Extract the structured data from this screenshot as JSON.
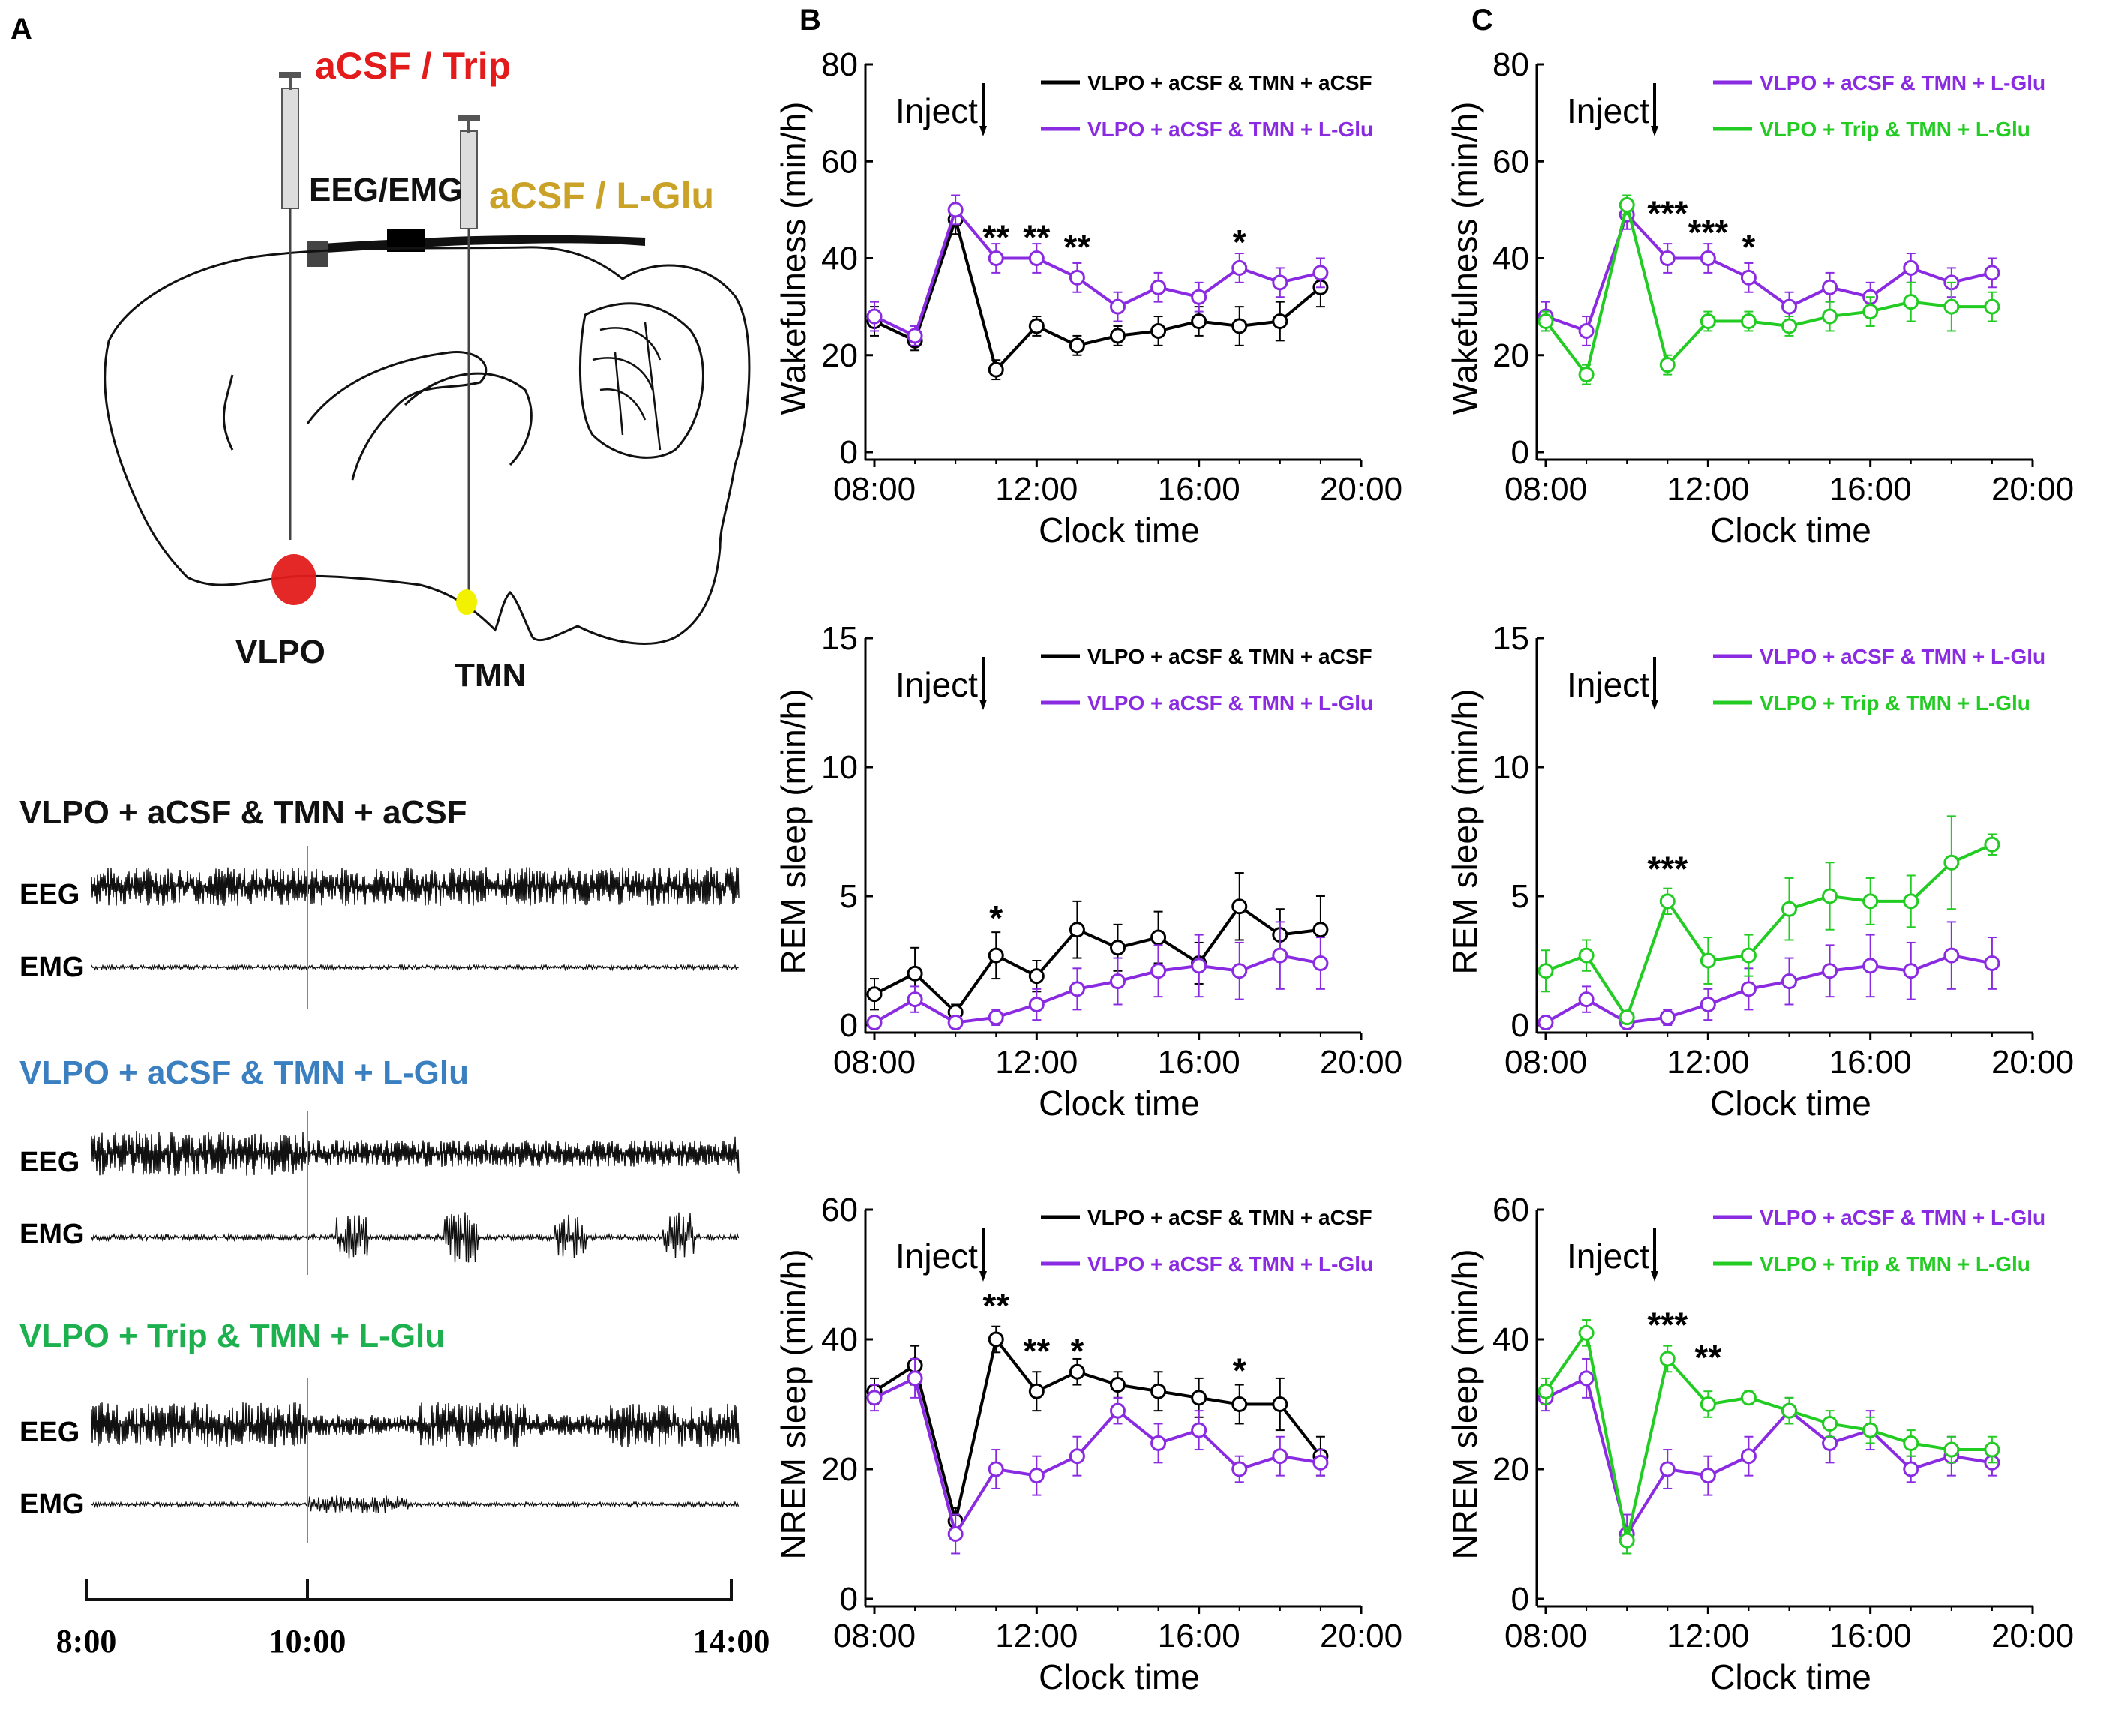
{
  "panel_a": {
    "letter": "A",
    "top_left_label": "aCSF / Trip",
    "top_right_label": "aCSF / L-Glu",
    "eeg_emg_label": "EEG/EMG",
    "vlpo_label": "VLPO",
    "tmn_label": "TMN",
    "colors": {
      "red": "#e31b1b",
      "gold": "#c9a227",
      "yellow": "#f2f200"
    },
    "traces": [
      {
        "title": "VLPO + aCSF & TMN + aCSF",
        "color": "#111111",
        "eeg": "EEG",
        "emg": "EMG"
      },
      {
        "title": "VLPO + aCSF & TMN + L-Glu",
        "color": "#3a7fc0",
        "eeg": "EEG",
        "emg": "EMG"
      },
      {
        "title": "VLPO + Trip & TMN + L-Glu",
        "color": "#1db04e",
        "eeg": "EEG",
        "emg": "EMG"
      }
    ],
    "time_axis": [
      "8:00",
      "10:00",
      "14:00"
    ]
  },
  "panel_b_letter": "B",
  "panel_c_letter": "C",
  "inject_label": "Inject",
  "chart_data": [
    {
      "id": "B-wake",
      "type": "line",
      "panel": "B",
      "ylabel": "Wakefulness (min/h)",
      "xlabel": "Clock time",
      "ylim": [
        0,
        80
      ],
      "yticks": [
        0,
        20,
        40,
        60,
        80
      ],
      "xlim": [
        8,
        20
      ],
      "xticks": [
        8,
        12,
        16,
        20
      ],
      "xtick_labels": [
        "08:00",
        "12:00",
        "16:00",
        "20:00"
      ],
      "x": [
        8,
        9,
        10,
        11,
        12,
        13,
        14,
        15,
        16,
        17,
        18,
        19
      ],
      "series": [
        {
          "name": "VLPO + aCSF & TMN + aCSF",
          "color": "#000000",
          "values": [
            27,
            23,
            48,
            17,
            26,
            22,
            24,
            25,
            27,
            26,
            27,
            34
          ],
          "errors": [
            3,
            2,
            3,
            2,
            2,
            2,
            2,
            3,
            3,
            4,
            4,
            4
          ]
        },
        {
          "name": "VLPO + aCSF & TMN + L-Glu",
          "color": "#8a2be2",
          "values": [
            28,
            24,
            50,
            40,
            40,
            36,
            30,
            34,
            32,
            38,
            35,
            37
          ],
          "errors": [
            3,
            2,
            3,
            3,
            3,
            3,
            3,
            3,
            3,
            3,
            3,
            3
          ]
        }
      ],
      "annotations": [
        {
          "x": 11,
          "y": 44,
          "text": "**"
        },
        {
          "x": 12,
          "y": 44,
          "text": "**"
        },
        {
          "x": 13,
          "y": 42,
          "text": "**"
        },
        {
          "x": 17,
          "y": 43,
          "text": "*"
        }
      ]
    },
    {
      "id": "B-rem",
      "type": "line",
      "panel": "B",
      "ylabel": "REM sleep (min/h)",
      "xlabel": "Clock time",
      "ylim": [
        0,
        15
      ],
      "yticks": [
        0,
        5,
        10,
        15
      ],
      "xlim": [
        8,
        20
      ],
      "xticks": [
        8,
        12,
        16,
        20
      ],
      "xtick_labels": [
        "08:00",
        "12:00",
        "16:00",
        "20:00"
      ],
      "x": [
        8,
        9,
        10,
        11,
        12,
        13,
        14,
        15,
        16,
        17,
        18,
        19
      ],
      "series": [
        {
          "name": "VLPO + aCSF & TMN + aCSF",
          "color": "#000000",
          "values": [
            1.2,
            2.0,
            0.5,
            2.7,
            1.9,
            3.7,
            3.0,
            3.4,
            2.4,
            4.6,
            3.5,
            3.7
          ],
          "errors": [
            0.6,
            1.0,
            0.3,
            0.9,
            0.6,
            1.1,
            0.9,
            1.0,
            0.8,
            1.3,
            1.0,
            1.3
          ]
        },
        {
          "name": "VLPO + aCSF & TMN + L-Glu",
          "color": "#8a2be2",
          "values": [
            0.1,
            1.0,
            0.1,
            0.3,
            0.8,
            1.4,
            1.7,
            2.1,
            2.3,
            2.1,
            2.7,
            2.4
          ],
          "errors": [
            0.2,
            0.5,
            0.1,
            0.3,
            0.6,
            0.8,
            0.9,
            1.0,
            1.2,
            1.1,
            1.3,
            1.0
          ]
        }
      ],
      "annotations": [
        {
          "x": 11,
          "y": 4.1,
          "text": "*"
        }
      ]
    },
    {
      "id": "B-nrem",
      "type": "line",
      "panel": "B",
      "ylabel": "NREM sleep (min/h)",
      "xlabel": "Clock time",
      "ylim": [
        0,
        60
      ],
      "yticks": [
        0,
        20,
        40,
        60
      ],
      "xlim": [
        8,
        20
      ],
      "xticks": [
        8,
        12,
        16,
        20
      ],
      "xtick_labels": [
        "08:00",
        "12:00",
        "16:00",
        "20:00"
      ],
      "x": [
        8,
        9,
        10,
        11,
        12,
        13,
        14,
        15,
        16,
        17,
        18,
        19
      ],
      "series": [
        {
          "name": "VLPO + aCSF & TMN + aCSF",
          "color": "#000000",
          "values": [
            32,
            36,
            12,
            40,
            32,
            35,
            33,
            32,
            31,
            30,
            30,
            22
          ],
          "errors": [
            2,
            3,
            2,
            2,
            3,
            2,
            2,
            3,
            3,
            3,
            4,
            3
          ]
        },
        {
          "name": "VLPO + aCSF & TMN + L-Glu",
          "color": "#8a2be2",
          "values": [
            31,
            34,
            10,
            20,
            19,
            22,
            29,
            24,
            26,
            20,
            22,
            21
          ],
          "errors": [
            2,
            3,
            3,
            3,
            3,
            3,
            2,
            3,
            3,
            2,
            3,
            2
          ]
        }
      ],
      "annotations": [
        {
          "x": 11,
          "y": 45,
          "text": "**"
        },
        {
          "x": 12,
          "y": 38,
          "text": "**"
        },
        {
          "x": 13,
          "y": 38,
          "text": "*"
        },
        {
          "x": 17,
          "y": 35,
          "text": "*"
        }
      ]
    },
    {
      "id": "C-wake",
      "type": "line",
      "panel": "C",
      "ylabel": "Wakefulness (min/h)",
      "xlabel": "Clock time",
      "ylim": [
        0,
        80
      ],
      "yticks": [
        0,
        20,
        40,
        60,
        80
      ],
      "xlim": [
        8,
        20
      ],
      "xticks": [
        8,
        12,
        16,
        20
      ],
      "xtick_labels": [
        "08:00",
        "12:00",
        "16:00",
        "20:00"
      ],
      "x": [
        8,
        9,
        10,
        11,
        12,
        13,
        14,
        15,
        16,
        17,
        18,
        19
      ],
      "series": [
        {
          "name": "VLPO + aCSF & TMN + L-Glu",
          "color": "#8a2be2",
          "values": [
            28,
            25,
            49,
            40,
            40,
            36,
            30,
            34,
            32,
            38,
            35,
            37
          ],
          "errors": [
            3,
            3,
            3,
            3,
            3,
            3,
            3,
            3,
            3,
            3,
            3,
            3
          ]
        },
        {
          "name": "VLPO + Trip & TMN + L-Glu",
          "color": "#22cc22",
          "values": [
            27,
            16,
            51,
            18,
            27,
            27,
            26,
            28,
            29,
            31,
            30,
            30
          ],
          "errors": [
            2,
            2,
            2,
            2,
            2,
            2,
            2,
            3,
            3,
            4,
            5,
            3
          ]
        }
      ],
      "annotations": [
        {
          "x": 11,
          "y": 49,
          "text": "***"
        },
        {
          "x": 12,
          "y": 45,
          "text": "***"
        },
        {
          "x": 13,
          "y": 42,
          "text": "*"
        }
      ]
    },
    {
      "id": "C-rem",
      "type": "line",
      "panel": "C",
      "ylabel": "REM sleep (min/h)",
      "xlabel": "Clock time",
      "ylim": [
        0,
        15
      ],
      "yticks": [
        0,
        5,
        10,
        15
      ],
      "xlim": [
        8,
        20
      ],
      "xticks": [
        8,
        12,
        16,
        20
      ],
      "xtick_labels": [
        "08:00",
        "12:00",
        "16:00",
        "20:00"
      ],
      "x": [
        8,
        9,
        10,
        11,
        12,
        13,
        14,
        15,
        16,
        17,
        18,
        19
      ],
      "series": [
        {
          "name": "VLPO + aCSF & TMN + L-Glu",
          "color": "#8a2be2",
          "values": [
            0.1,
            1.0,
            0.1,
            0.3,
            0.8,
            1.4,
            1.7,
            2.1,
            2.3,
            2.1,
            2.7,
            2.4
          ],
          "errors": [
            0.2,
            0.5,
            0.1,
            0.3,
            0.6,
            0.8,
            0.9,
            1.0,
            1.2,
            1.1,
            1.3,
            1.0
          ]
        },
        {
          "name": "VLPO + Trip & TMN + L-Glu",
          "color": "#22cc22",
          "values": [
            2.1,
            2.7,
            0.3,
            4.8,
            2.5,
            2.7,
            4.5,
            5.0,
            4.8,
            4.8,
            6.3,
            7.0
          ],
          "errors": [
            0.8,
            0.6,
            0.2,
            0.5,
            0.9,
            0.8,
            1.2,
            1.3,
            0.9,
            1.0,
            1.8,
            0.4
          ]
        }
      ],
      "annotations": [
        {
          "x": 11,
          "y": 6.0,
          "text": "***"
        }
      ]
    },
    {
      "id": "C-nrem",
      "type": "line",
      "panel": "C",
      "ylabel": "NREM sleep (min/h)",
      "xlabel": "Clock time",
      "ylim": [
        0,
        60
      ],
      "yticks": [
        0,
        20,
        40,
        60
      ],
      "xlim": [
        8,
        20
      ],
      "xticks": [
        8,
        12,
        16,
        20
      ],
      "xtick_labels": [
        "08:00",
        "12:00",
        "16:00",
        "20:00"
      ],
      "x": [
        8,
        9,
        10,
        11,
        12,
        13,
        14,
        15,
        16,
        17,
        18,
        19
      ],
      "series": [
        {
          "name": "VLPO + aCSF & TMN + L-Glu",
          "color": "#8a2be2",
          "values": [
            31,
            34,
            10,
            20,
            19,
            22,
            29,
            24,
            26,
            20,
            22,
            21
          ],
          "errors": [
            2,
            3,
            3,
            3,
            3,
            3,
            2,
            3,
            3,
            2,
            3,
            2
          ]
        },
        {
          "name": "VLPO + Trip & TMN + L-Glu",
          "color": "#22cc22",
          "values": [
            32,
            41,
            9,
            37,
            30,
            31,
            29,
            27,
            26,
            24,
            23,
            23
          ],
          "errors": [
            2,
            2,
            2,
            2,
            2,
            1,
            2,
            2,
            2,
            2,
            2,
            2
          ]
        }
      ],
      "annotations": [
        {
          "x": 11,
          "y": 42,
          "text": "***"
        },
        {
          "x": 12,
          "y": 37,
          "text": "**"
        }
      ]
    }
  ]
}
